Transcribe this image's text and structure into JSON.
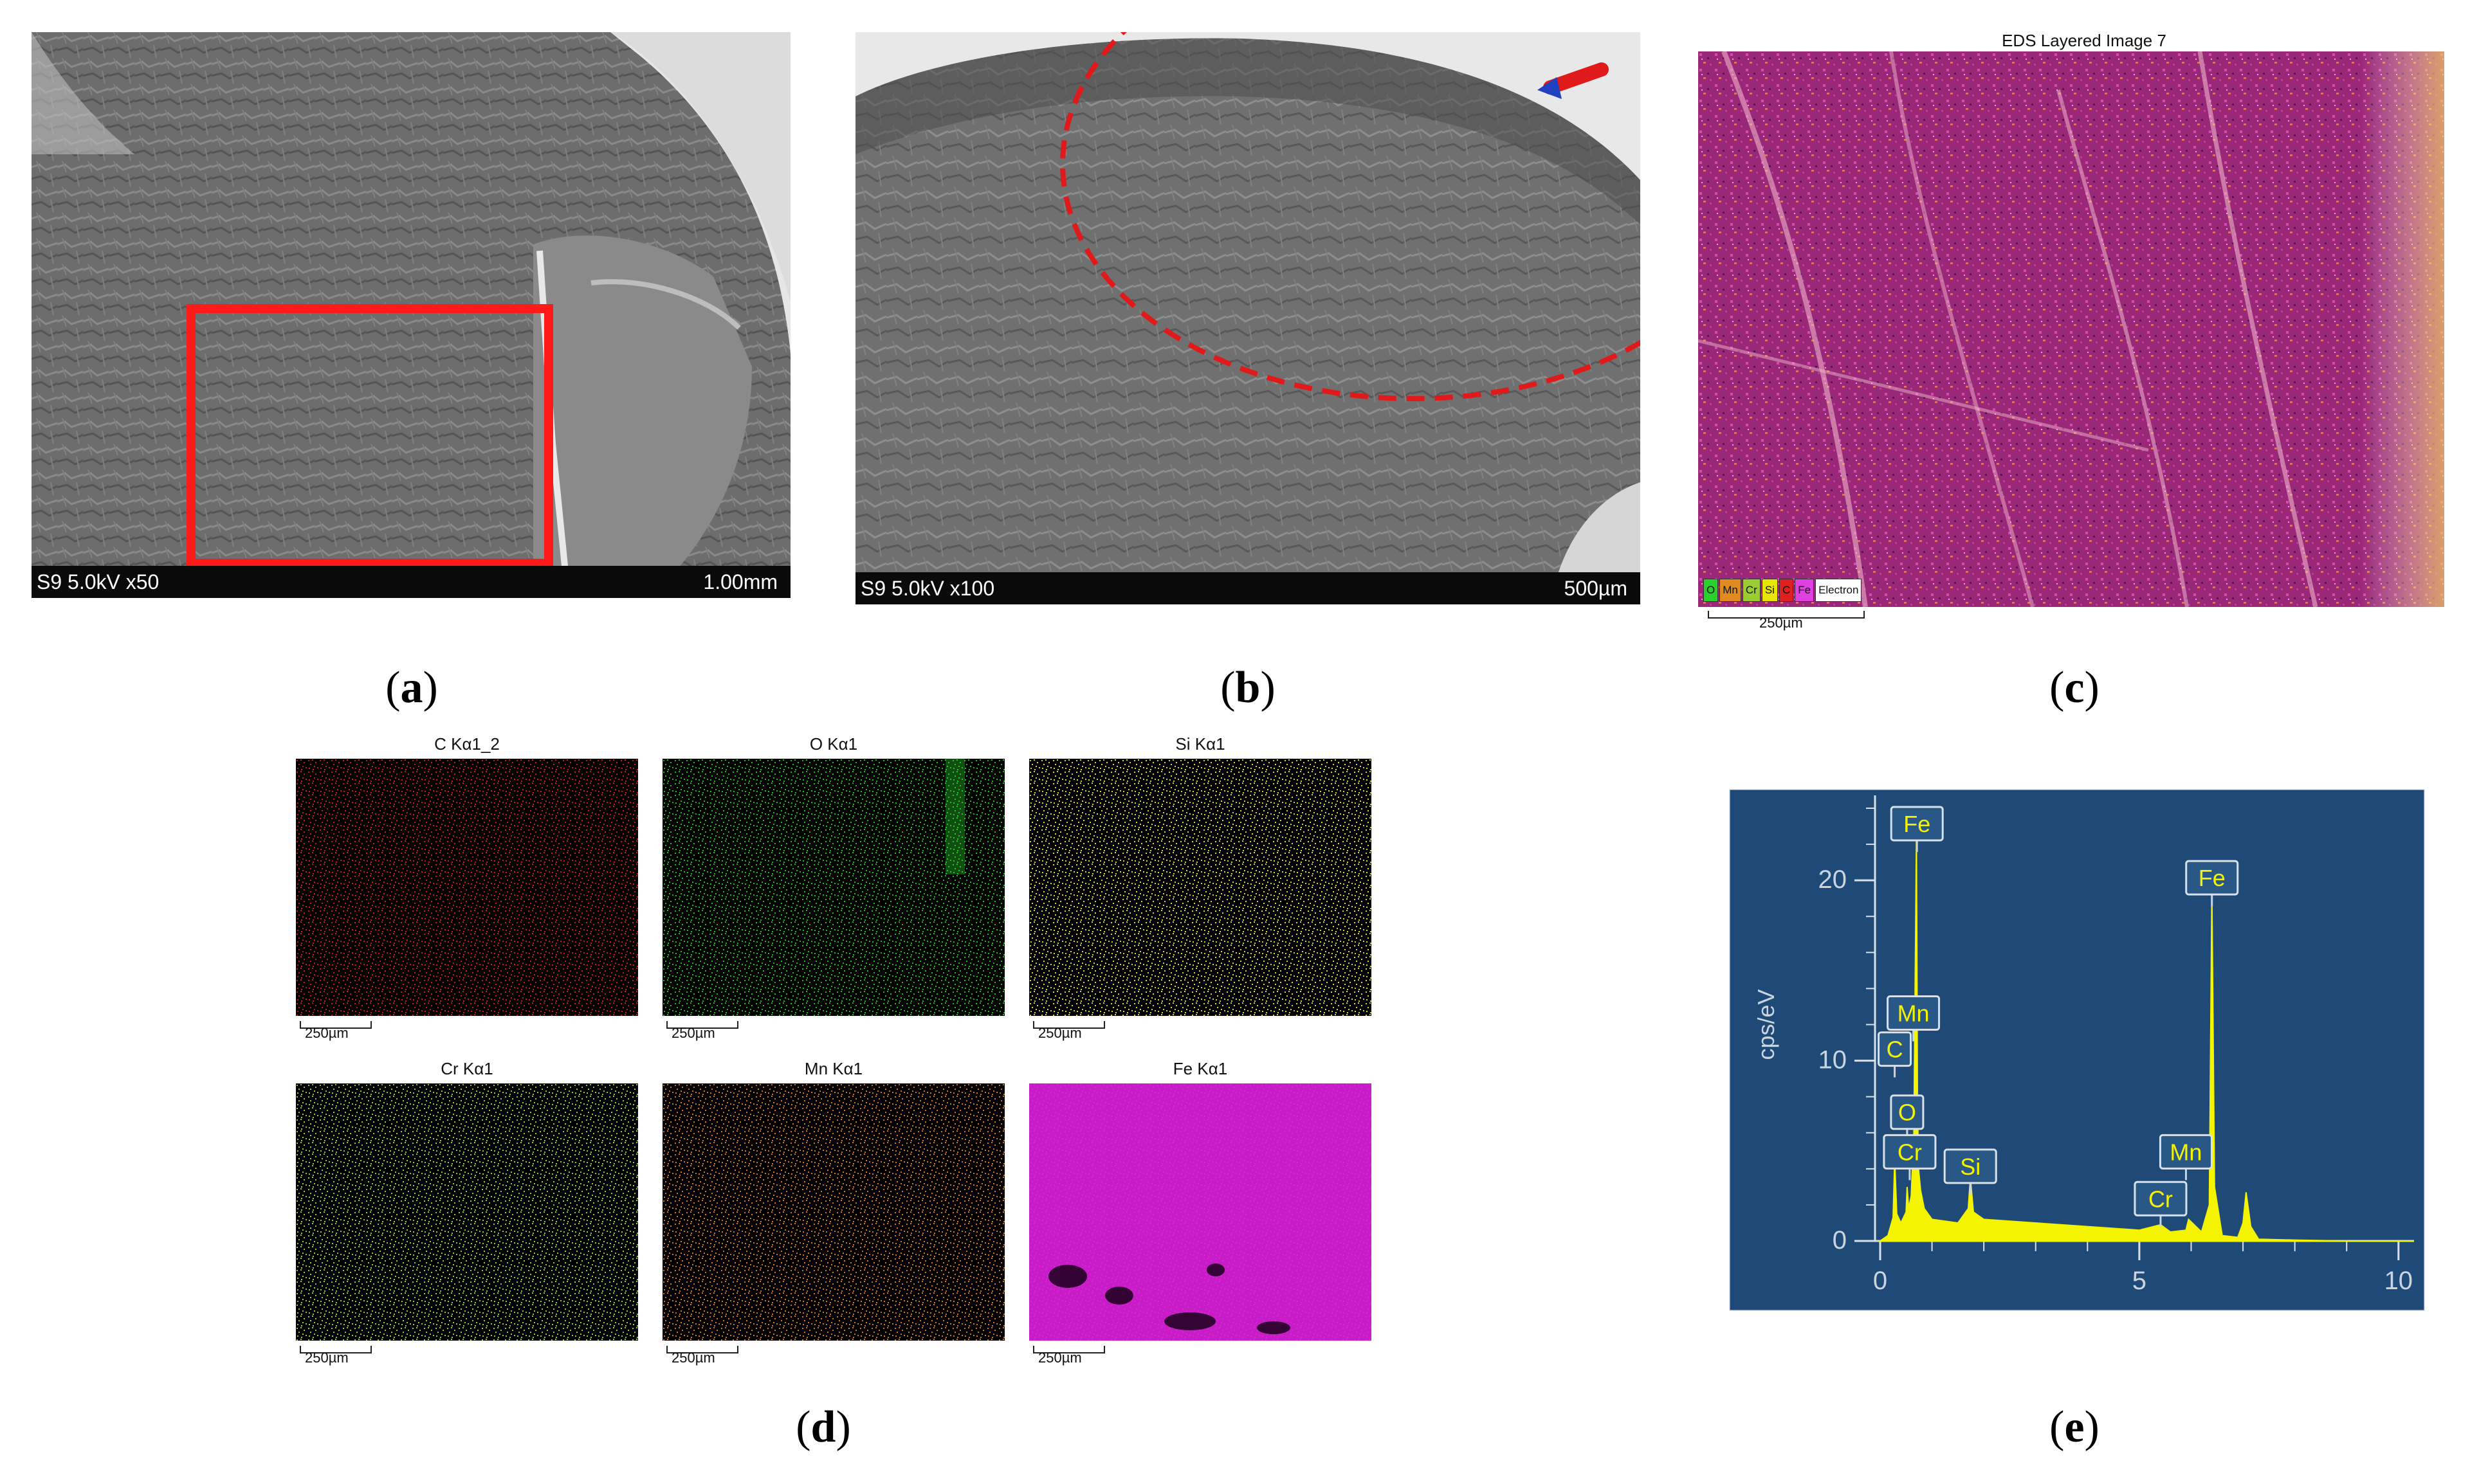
{
  "panels": {
    "a": {
      "caption_letter": "a",
      "sem_label_left": "S9 5.0kV x50",
      "sem_label_right": "1.00mm"
    },
    "b": {
      "caption_letter": "b",
      "sem_label_left": "S9 5.0kV x100",
      "sem_label_right": "500µm"
    },
    "c": {
      "caption_letter": "c",
      "title": "EDS Layered Image 7",
      "legend": [
        "O",
        "Mn",
        "Cr",
        "Si",
        "C",
        "Fe",
        "Electron"
      ],
      "legend_colors": [
        "#2bd12b",
        "#e08a20",
        "#9acd32",
        "#e6e600",
        "#e02020",
        "#e040e0",
        "#ffffff"
      ],
      "scale_label": "250µm"
    },
    "d": {
      "caption_letter": "d",
      "maps": [
        {
          "title": "C Kα1_2",
          "color": "#d01818",
          "scale": "250µm"
        },
        {
          "title": "O Kα1",
          "color": "#18c018",
          "scale": "250µm"
        },
        {
          "title": "Si Kα1",
          "color": "#d8d820",
          "scale": "250µm"
        },
        {
          "title": "Cr Kα1",
          "color": "#8fd020",
          "scale": "250µm"
        },
        {
          "title": "Mn Kα1",
          "color": "#d07818",
          "scale": "250µm"
        },
        {
          "title": "Fe Kα1",
          "color": "#e020e0",
          "scale": "250µm"
        }
      ]
    },
    "e": {
      "caption_letter": "e",
      "chart_data": {
        "type": "line",
        "title": "",
        "xlabel": "",
        "ylabel": "cps/eV",
        "xlim": [
          0,
          10.3
        ],
        "ylim": [
          0,
          24
        ],
        "x_ticks": [
          "0",
          "5",
          "10"
        ],
        "y_ticks": [
          "0",
          "10",
          "20"
        ],
        "series": [
          {
            "x": [
              0,
              0.15,
              0.25,
              0.28,
              0.32,
              0.4,
              0.5,
              0.52,
              0.55,
              0.6,
              0.65,
              0.7,
              0.72,
              0.74,
              0.78,
              0.85,
              1.0,
              1.5,
              1.7,
              1.74,
              1.8,
              2.0,
              3.0,
              4.0,
              5.0,
              5.41,
              5.6,
              5.9,
              5.95,
              6.2,
              6.35,
              6.4,
              6.45,
              6.6,
              6.9,
              7.0,
              7.06,
              7.15,
              7.3,
              8.0,
              9.0,
              10.3
            ],
            "y": [
              0,
              0.3,
              1.3,
              4.5,
              1.5,
              1.0,
              1.6,
              3.0,
              1.8,
              2.5,
              6.0,
              22.5,
              8.0,
              4.0,
              2.8,
              1.8,
              1.2,
              1.0,
              1.8,
              3.5,
              1.6,
              1.2,
              1.0,
              0.8,
              0.6,
              0.9,
              0.5,
              0.6,
              1.2,
              0.5,
              2.0,
              19.5,
              3.0,
              0.3,
              0.2,
              1.0,
              2.7,
              0.8,
              0.1,
              0.05,
              0.0,
              0.0
            ]
          }
        ],
        "annotations": [
          {
            "label": "Fe",
            "x": 0.71,
            "y": 23.0
          },
          {
            "label": "Fe",
            "x": 6.4,
            "y": 20.0
          },
          {
            "label": "Mn",
            "x": 0.64,
            "y": 12.5
          },
          {
            "label": "C",
            "x": 0.28,
            "y": 10.5
          },
          {
            "label": "O",
            "x": 0.52,
            "y": 7.0
          },
          {
            "label": "Cr",
            "x": 0.57,
            "y": 4.8
          },
          {
            "label": "Si",
            "x": 1.74,
            "y": 4.0
          },
          {
            "label": "Mn",
            "x": 5.9,
            "y": 4.8
          },
          {
            "label": "Cr",
            "x": 5.41,
            "y": 2.2
          }
        ],
        "bg_color": "#1f4a78",
        "line_color": "#f4f400"
      }
    }
  }
}
